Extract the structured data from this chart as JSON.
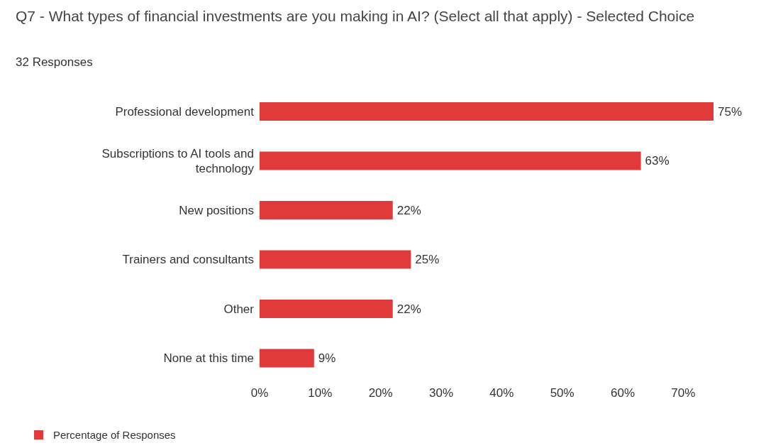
{
  "chart_data": {
    "type": "bar",
    "orientation": "horizontal",
    "title": "Q7 - What types of financial investments are you making in AI? (Select all that apply) - Selected Choice",
    "subtitle": "32 Responses",
    "categories": [
      "Professional development",
      "Subscriptions to AI tools and technology",
      "New positions",
      "Trainers and consultants",
      "Other",
      "None at this time"
    ],
    "series": [
      {
        "name": "Percentage of Responses",
        "color": "#e03a3a",
        "values": [
          75,
          63,
          22,
          25,
          22,
          9
        ],
        "value_labels": [
          "75%",
          "63%",
          "22%",
          "25%",
          "22%",
          "9%"
        ]
      }
    ],
    "xlim": [
      0,
      75
    ],
    "xticks": [
      {
        "value": 0,
        "label": "0%"
      },
      {
        "value": 10,
        "label": "10%"
      },
      {
        "value": 20,
        "label": "20%"
      },
      {
        "value": 30,
        "label": "30%"
      },
      {
        "value": 40,
        "label": "40%"
      },
      {
        "value": 50,
        "label": "50%"
      },
      {
        "value": 60,
        "label": "60%"
      },
      {
        "value": 70,
        "label": "70%"
      }
    ],
    "grid": false,
    "legend": "bottom left"
  }
}
